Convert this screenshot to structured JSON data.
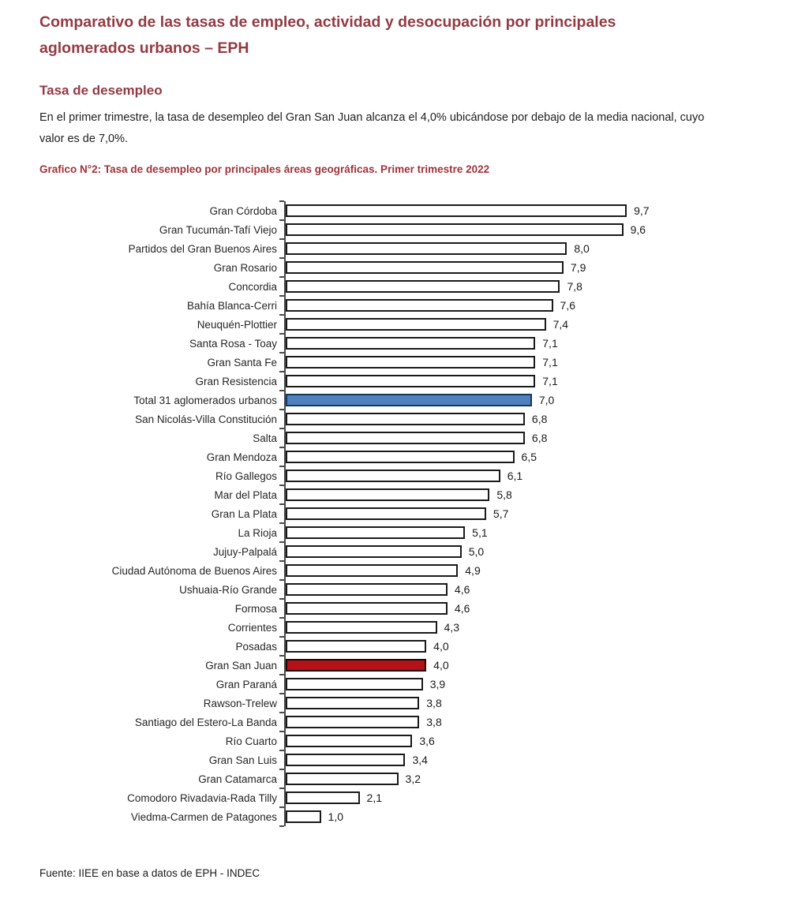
{
  "page": {
    "title_lines": [
      "Comparativo de las tasas de empleo, actividad y desocupación por principales",
      "aglomerados urbanos – EPH"
    ],
    "title_full": "Comparativo de las tasas de empleo, actividad y desocupación por principales aglomerados urbanos – EPH",
    "section_heading": "Tasa de desempleo",
    "paragraph": "En el primer trimestre, la tasa de desempleo del Gran San Juan alcanza el 4,0% ubicándose por debajo de la media nacional, cuyo valor es de 7,0%.",
    "chart_caption": "Grafico N°2: Tasa de desempleo por principales áreas geográficas. Primer trimestre 2022",
    "source": "Fuente: IIEE en base a datos de EPH - INDEC"
  },
  "colors": {
    "heading_maroon": "#943a42",
    "caption_maroon": "#a2333b",
    "bar_default_fill": "#ffffff",
    "bar_border": "#1a1a1a",
    "bar_total_fill": "#4f81bd",
    "bar_total_border": "#17365d",
    "bar_san_juan_fill": "#b41218",
    "bar_san_juan_border": "#1c0a0a",
    "axis": "#4a4a4a"
  },
  "chart_data": {
    "type": "bar",
    "orientation": "horizontal",
    "title": "Grafico N°2: Tasa de desempleo por principales áreas geográficas. Primer trimestre 2022",
    "xlabel": "",
    "ylabel": "",
    "xlim": [
      0,
      11
    ],
    "grid": false,
    "legend": "none",
    "value_labels": "outside-end, comma decimal",
    "rows": [
      {
        "label": "Gran Córdoba",
        "value": 9.7,
        "display": "9,7",
        "highlight": null
      },
      {
        "label": "Gran Tucumán-Tafí Viejo",
        "value": 9.6,
        "display": "9,6",
        "highlight": null
      },
      {
        "label": "Partidos del Gran Buenos Aires",
        "value": 8.0,
        "display": "8,0",
        "highlight": null
      },
      {
        "label": "Gran Rosario",
        "value": 7.9,
        "display": "7,9",
        "highlight": null
      },
      {
        "label": "Concordia",
        "value": 7.8,
        "display": "7,8",
        "highlight": null
      },
      {
        "label": "Bahía Blanca-Cerri",
        "value": 7.6,
        "display": "7,6",
        "highlight": null
      },
      {
        "label": "Neuquén-Plottier",
        "value": 7.4,
        "display": "7,4",
        "highlight": null
      },
      {
        "label": "Santa Rosa - Toay",
        "value": 7.1,
        "display": "7,1",
        "highlight": null
      },
      {
        "label": "Gran Santa Fe",
        "value": 7.1,
        "display": "7,1",
        "highlight": null
      },
      {
        "label": "Gran Resistencia",
        "value": 7.1,
        "display": "7,1",
        "highlight": null
      },
      {
        "label": "Total 31 aglomerados urbanos",
        "value": 7.0,
        "display": "7,0",
        "highlight": "blue"
      },
      {
        "label": "San Nicolás-Villa Constitución",
        "value": 6.8,
        "display": "6,8",
        "highlight": null
      },
      {
        "label": "Salta",
        "value": 6.8,
        "display": "6,8",
        "highlight": null
      },
      {
        "label": "Gran Mendoza",
        "value": 6.5,
        "display": "6,5",
        "highlight": null
      },
      {
        "label": "Río Gallegos",
        "value": 6.1,
        "display": "6,1",
        "highlight": null
      },
      {
        "label": "Mar del Plata",
        "value": 5.8,
        "display": "5,8",
        "highlight": null
      },
      {
        "label": "Gran La Plata",
        "value": 5.7,
        "display": "5,7",
        "highlight": null
      },
      {
        "label": "La Rioja",
        "value": 5.1,
        "display": "5,1",
        "highlight": null
      },
      {
        "label": "Jujuy-Palpalá",
        "value": 5.0,
        "display": "5,0",
        "highlight": null
      },
      {
        "label": "Ciudad Autónoma de Buenos Aires",
        "value": 4.9,
        "display": "4,9",
        "highlight": null
      },
      {
        "label": "Ushuaia-Río Grande",
        "value": 4.6,
        "display": "4,6",
        "highlight": null
      },
      {
        "label": "Formosa",
        "value": 4.6,
        "display": "4,6",
        "highlight": null
      },
      {
        "label": "Corrientes",
        "value": 4.3,
        "display": "4,3",
        "highlight": null
      },
      {
        "label": "Posadas",
        "value": 4.0,
        "display": "4,0",
        "highlight": null
      },
      {
        "label": "Gran San Juan",
        "value": 4.0,
        "display": "4,0",
        "highlight": "red"
      },
      {
        "label": "Gran Paraná",
        "value": 3.9,
        "display": "3,9",
        "highlight": null
      },
      {
        "label": "Rawson-Trelew",
        "value": 3.8,
        "display": "3,8",
        "highlight": null
      },
      {
        "label": "Santiago del Estero-La Banda",
        "value": 3.8,
        "display": "3,8",
        "highlight": null
      },
      {
        "label": "Río Cuarto",
        "value": 3.6,
        "display": "3,6",
        "highlight": null
      },
      {
        "label": "Gran San Luis",
        "value": 3.4,
        "display": "3,4",
        "highlight": null
      },
      {
        "label": "Gran Catamarca",
        "value": 3.2,
        "display": "3,2",
        "highlight": null
      },
      {
        "label": "Comodoro Rivadavia-Rada Tilly",
        "value": 2.1,
        "display": "2,1",
        "highlight": null
      },
      {
        "label": "Viedma-Carmen de Patagones",
        "value": 1.0,
        "display": "1,0",
        "highlight": null
      }
    ]
  }
}
